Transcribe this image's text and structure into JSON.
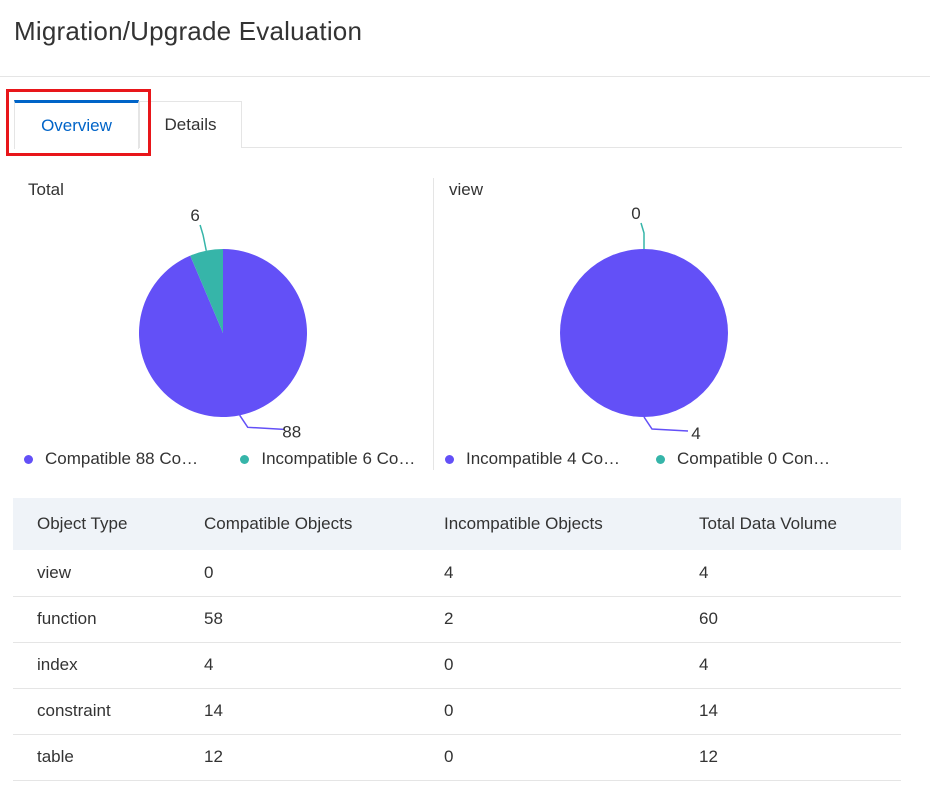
{
  "page": {
    "title": "Migration/Upgrade Evaluation"
  },
  "tabs": [
    {
      "label": "Overview",
      "active": true
    },
    {
      "label": "Details",
      "active": false
    }
  ],
  "colors": {
    "compatible": "#6350f7",
    "incompatible": "#36b5a9",
    "accent": "#0064c8",
    "highlight": "#e8161a"
  },
  "charts": [
    {
      "title": "Total",
      "legend": [
        {
          "label": "Compatible 88 Co…",
          "color": "#6350f7"
        },
        {
          "label": "Incompatible 6 Co…",
          "color": "#36b5a9"
        }
      ]
    },
    {
      "title": "view",
      "legend": [
        {
          "label": "Incompatible 4 Co…",
          "color": "#6350f7"
        },
        {
          "label": "Compatible 0 Con…",
          "color": "#36b5a9"
        }
      ]
    }
  ],
  "chart_data": [
    {
      "type": "pie",
      "title": "Total",
      "categories": [
        "Compatible",
        "Incompatible"
      ],
      "values": [
        88,
        6
      ],
      "colors": [
        "#6350f7",
        "#36b5a9"
      ],
      "data_labels": [
        "88",
        "6"
      ],
      "legend_position": "bottom"
    },
    {
      "type": "pie",
      "title": "view",
      "categories": [
        "Incompatible",
        "Compatible"
      ],
      "values": [
        4,
        0
      ],
      "colors": [
        "#6350f7",
        "#36b5a9"
      ],
      "data_labels": [
        "4",
        "0"
      ],
      "legend_position": "bottom"
    }
  ],
  "table": {
    "headers": [
      "Object Type",
      "Compatible Objects",
      "Incompatible Objects",
      "Total Data Volume"
    ],
    "rows": [
      [
        "view",
        "0",
        "4",
        "4"
      ],
      [
        "function",
        "58",
        "2",
        "60"
      ],
      [
        "index",
        "4",
        "0",
        "4"
      ],
      [
        "constraint",
        "14",
        "0",
        "14"
      ],
      [
        "table",
        "12",
        "0",
        "12"
      ]
    ]
  }
}
